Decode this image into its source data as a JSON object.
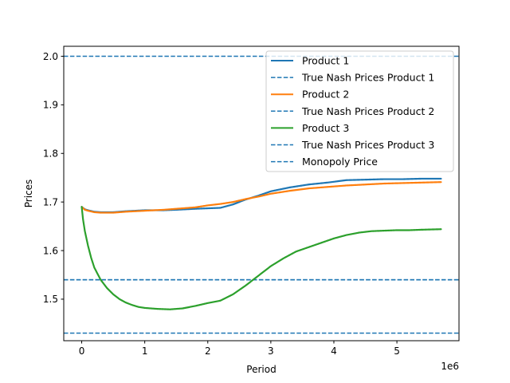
{
  "chart_data": {
    "type": "line",
    "title": "",
    "xlabel": "Period",
    "ylabel": "Prices",
    "x_offset_label": "1e6",
    "xlim": [
      -0.285,
      5.985
    ],
    "ylim": [
      1.4145,
      2.0205
    ],
    "x_ticks": [
      0,
      1,
      2,
      3,
      4,
      5
    ],
    "x_tick_labels": [
      "0",
      "1",
      "2",
      "3",
      "4",
      "5"
    ],
    "y_ticks": [
      1.5,
      1.6,
      1.7,
      1.8,
      1.9,
      2.0
    ],
    "y_tick_labels": [
      "1.5",
      "1.6",
      "1.7",
      "1.8",
      "1.9",
      "2.0"
    ],
    "grid": false,
    "legend_position": "top-right",
    "legend": [
      {
        "label": "Product 1",
        "color": "#1f77b4",
        "style": "solid"
      },
      {
        "label": "True Nash Prices Product 1",
        "color": "#1f77b4",
        "style": "dashed"
      },
      {
        "label": "Product 2",
        "color": "#ff7f0e",
        "style": "solid"
      },
      {
        "label": "True Nash Prices Product 2",
        "color": "#1f77b4",
        "style": "dashed"
      },
      {
        "label": "Product 3",
        "color": "#2ca02c",
        "style": "solid"
      },
      {
        "label": "True Nash Prices Product 3",
        "color": "#1f77b4",
        "style": "dashed"
      },
      {
        "label": "Monopoly Price",
        "color": "#1f77b4",
        "style": "dashed"
      }
    ],
    "hlines": [
      {
        "label": "True Nash Prices Product 1",
        "y": 1.43,
        "color": "#1f77b4"
      },
      {
        "label": "True Nash Prices Product 2",
        "y": 1.54,
        "color": "#1f77b4"
      },
      {
        "label": "True Nash Prices Product 3",
        "y": 1.54,
        "color": "#1f77b4"
      },
      {
        "label": "Monopoly Price",
        "y": 2.0,
        "color": "#1f77b4"
      }
    ],
    "series": [
      {
        "name": "Product 1",
        "color": "#1f77b4",
        "x": [
          0,
          0.05,
          0.1,
          0.2,
          0.3,
          0.5,
          0.7,
          1.0,
          1.3,
          1.5,
          1.8,
          2.0,
          2.2,
          2.4,
          2.6,
          2.8,
          3.0,
          3.3,
          3.6,
          3.9,
          4.2,
          4.5,
          4.8,
          5.1,
          5.4,
          5.7
        ],
        "y": [
          1.69,
          1.685,
          1.683,
          1.68,
          1.679,
          1.679,
          1.681,
          1.683,
          1.683,
          1.684,
          1.686,
          1.687,
          1.688,
          1.695,
          1.705,
          1.713,
          1.722,
          1.73,
          1.736,
          1.74,
          1.745,
          1.746,
          1.747,
          1.747,
          1.748,
          1.748
        ]
      },
      {
        "name": "Product 2",
        "color": "#ff7f0e",
        "x": [
          0,
          0.05,
          0.1,
          0.2,
          0.3,
          0.5,
          0.7,
          1.0,
          1.3,
          1.5,
          1.8,
          2.0,
          2.2,
          2.4,
          2.6,
          2.8,
          3.0,
          3.3,
          3.6,
          3.9,
          4.2,
          4.5,
          4.8,
          5.1,
          5.4,
          5.7
        ],
        "y": [
          1.69,
          1.684,
          1.682,
          1.679,
          1.678,
          1.678,
          1.68,
          1.682,
          1.684,
          1.686,
          1.689,
          1.693,
          1.696,
          1.7,
          1.706,
          1.711,
          1.717,
          1.723,
          1.728,
          1.731,
          1.734,
          1.736,
          1.738,
          1.739,
          1.74,
          1.741
        ]
      },
      {
        "name": "Product 3",
        "color": "#2ca02c",
        "x": [
          0,
          0.02,
          0.05,
          0.1,
          0.15,
          0.2,
          0.3,
          0.4,
          0.5,
          0.6,
          0.7,
          0.8,
          0.9,
          1.0,
          1.2,
          1.4,
          1.6,
          1.8,
          2.0,
          2.2,
          2.4,
          2.6,
          2.8,
          3.0,
          3.2,
          3.4,
          3.6,
          3.8,
          4.0,
          4.2,
          4.4,
          4.6,
          4.8,
          5.0,
          5.2,
          5.4,
          5.7
        ],
        "y": [
          1.69,
          1.665,
          1.64,
          1.61,
          1.585,
          1.565,
          1.54,
          1.523,
          1.51,
          1.5,
          1.493,
          1.488,
          1.484,
          1.482,
          1.48,
          1.479,
          1.481,
          1.486,
          1.492,
          1.497,
          1.51,
          1.528,
          1.548,
          1.568,
          1.584,
          1.598,
          1.607,
          1.616,
          1.625,
          1.632,
          1.637,
          1.64,
          1.641,
          1.642,
          1.642,
          1.643,
          1.644
        ]
      }
    ]
  }
}
